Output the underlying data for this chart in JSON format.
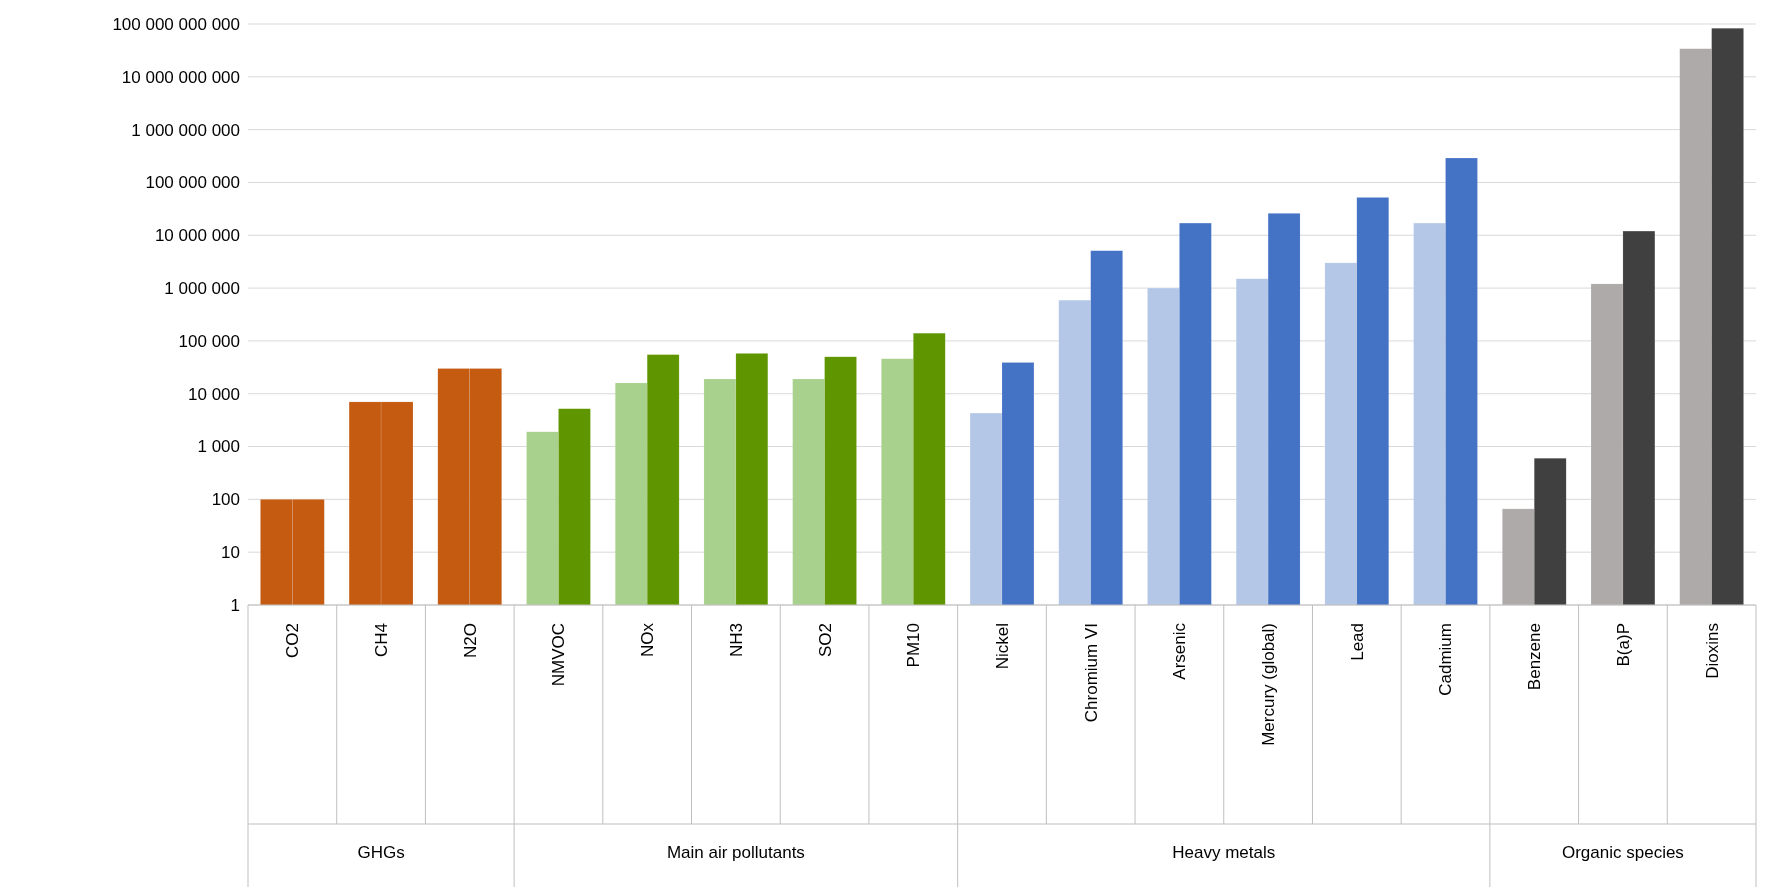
{
  "chart_data": {
    "type": "bar",
    "log": true,
    "grid": "y",
    "categories": [
      "CO2",
      "CH4",
      "N2O",
      "NMVOC",
      "NOx",
      "NH3",
      "SO2",
      "PM10",
      "Nickel",
      "Chromium VI",
      "Arsenic",
      "Mercury (global)",
      "Lead",
      "Cadmium",
      "Benzene",
      "B(a)P",
      "Dioxins"
    ],
    "series": [
      {
        "colors": [
          "#c55a11",
          "#c55a11",
          "#c55a11",
          "#a9d18e",
          "#a9d18e",
          "#a9d18e",
          "#a9d18e",
          "#a9d18e",
          "#b4c7e7",
          "#b4c7e7",
          "#b4c7e7",
          "#b4c7e7",
          "#b4c7e7",
          "#b4c7e7",
          "#aeaaaa",
          "#aeaaaa",
          "#aeaaaa"
        ],
        "values": [
          100,
          7000,
          30000,
          1900,
          16000,
          19000,
          19000,
          46000,
          4300,
          590000,
          1000000,
          1500000,
          3000000,
          17000000,
          66,
          1200000,
          34000000000
        ]
      },
      {
        "colors": [
          "#c55a11",
          "#c55a11",
          "#c55a11",
          "#5f9600",
          "#5f9600",
          "#5f9600",
          "#5f9600",
          "#5f9600",
          "#4472c4",
          "#4472c4",
          "#4472c4",
          "#4472c4",
          "#4472c4",
          "#4472c4",
          "#404040",
          "#404040",
          "#404040"
        ],
        "values": [
          100,
          7000,
          30000,
          5200,
          55000,
          58000,
          50000,
          140000,
          39000,
          5100000,
          17000000,
          26000000,
          52000000,
          290000000,
          600,
          12000000,
          83000000000
        ]
      }
    ],
    "ylim": [
      1,
      100000000000
    ],
    "yticks": [
      1,
      10,
      100,
      {
        "value": 1000,
        "label": "1 000"
      },
      {
        "value": 10000,
        "label": "10 000"
      },
      {
        "value": 100000,
        "label": "100 000"
      },
      {
        "value": 1000000,
        "label": "1 000 000"
      },
      {
        "value": 10000000,
        "label": "10 000 000"
      },
      {
        "value": 100000000,
        "label": "100 000 000"
      },
      {
        "value": 1000000000,
        "label": "1 000 000 000"
      },
      {
        "value": 10000000000,
        "label": "10 000 000 000"
      },
      {
        "value": 100000000000,
        "label": "100 000 000 000"
      }
    ],
    "annotations": [
      "GHGs",
      "Main air pollutants",
      "Heavy metals",
      "Organic species"
    ]
  }
}
